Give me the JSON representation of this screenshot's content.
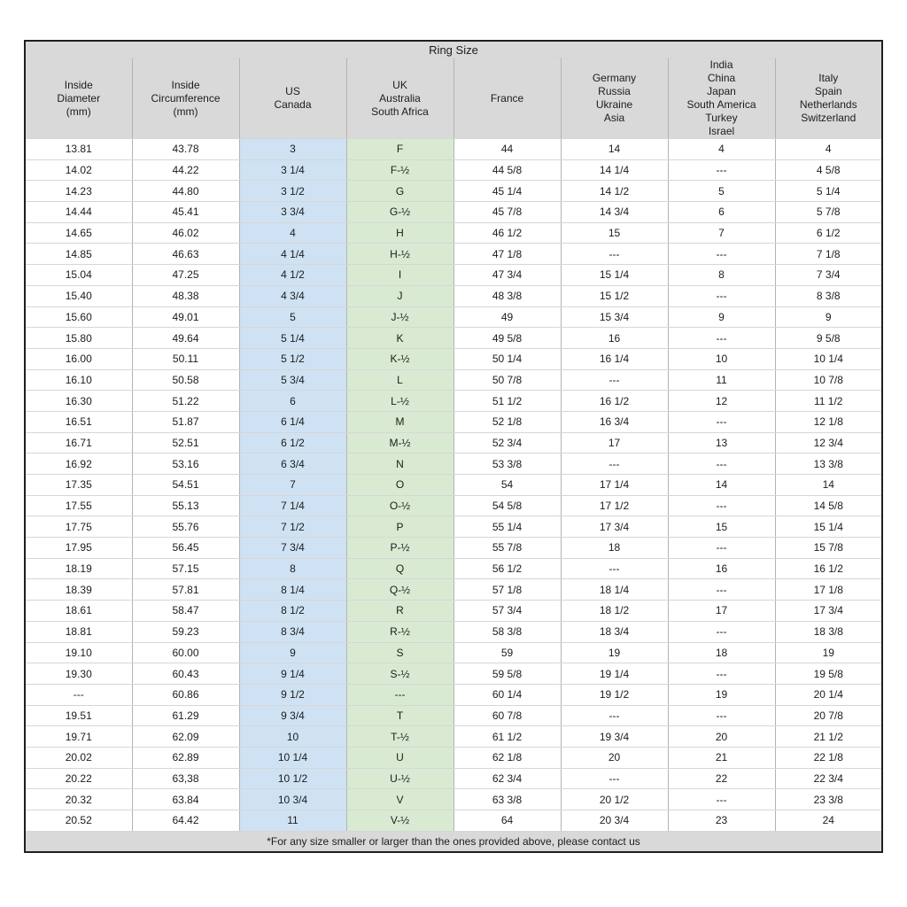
{
  "title": "Ring Size",
  "columns": [
    {
      "label": "Inside\nDiameter\n(mm)",
      "highlight": "none"
    },
    {
      "label": "Inside\nCircumference\n(mm)",
      "highlight": "none"
    },
    {
      "label": "US\nCanada",
      "highlight": "blue"
    },
    {
      "label": "UK\nAustralia\nSouth Africa",
      "highlight": "green"
    },
    {
      "label": "France",
      "highlight": "none"
    },
    {
      "label": "Germany\nRussia\nUkraine\nAsia",
      "highlight": "none"
    },
    {
      "label": "India\nChina\nJapan\nSouth America\nTurkey\nIsrael",
      "highlight": "none"
    },
    {
      "label": "Italy\nSpain\nNetherlands\nSwitzerland",
      "highlight": "none"
    }
  ],
  "rows": [
    [
      "13.81",
      "43.78",
      "3",
      "F",
      "44",
      "14",
      "4",
      "4"
    ],
    [
      "14.02",
      "44.22",
      "3 1/4",
      "F-½",
      "44 5/8",
      "14 1/4",
      "---",
      "4 5/8"
    ],
    [
      "14.23",
      "44.80",
      "3 1/2",
      "G",
      "45 1/4",
      "14 1/2",
      "5",
      "5 1/4"
    ],
    [
      "14.44",
      "45.41",
      "3 3/4",
      "G-½",
      "45 7/8",
      "14 3/4",
      "6",
      "5 7/8"
    ],
    [
      "14.65",
      "46.02",
      "4",
      "H",
      "46 1/2",
      "15",
      "7",
      "6 1/2"
    ],
    [
      "14.85",
      "46.63",
      "4 1/4",
      "H-½",
      "47 1/8",
      "---",
      "---",
      "7 1/8"
    ],
    [
      "15.04",
      "47.25",
      "4 1/2",
      "I",
      "47 3/4",
      "15 1/4",
      "8",
      "7 3/4"
    ],
    [
      "15.40",
      "48.38",
      "4 3/4",
      "J",
      "48 3/8",
      "15 1/2",
      "---",
      "8 3/8"
    ],
    [
      "15.60",
      "49.01",
      "5",
      "J-½",
      "49",
      "15 3/4",
      "9",
      "9"
    ],
    [
      "15.80",
      "49.64",
      "5 1/4",
      "K",
      "49 5/8",
      "16",
      "---",
      "9 5/8"
    ],
    [
      "16.00",
      "50.11",
      "5 1/2",
      "K-½",
      "50 1/4",
      "16 1/4",
      "10",
      "10 1/4"
    ],
    [
      "16.10",
      "50.58",
      "5 3/4",
      "L",
      "50 7/8",
      "---",
      "11",
      "10 7/8"
    ],
    [
      "16.30",
      "51.22",
      "6",
      "L-½",
      "51 1/2",
      "16 1/2",
      "12",
      "11 1/2"
    ],
    [
      "16.51",
      "51.87",
      "6 1/4",
      "M",
      "52 1/8",
      "16 3/4",
      "---",
      "12 1/8"
    ],
    [
      "16.71",
      "52.51",
      "6 1/2",
      "M-½",
      "52 3/4",
      "17",
      "13",
      "12 3/4"
    ],
    [
      "16.92",
      "53.16",
      "6 3/4",
      "N",
      "53 3/8",
      "---",
      "---",
      "13 3/8"
    ],
    [
      "17.35",
      "54.51",
      "7",
      "O",
      "54",
      "17 1/4",
      "14",
      "14"
    ],
    [
      "17.55",
      "55.13",
      "7 1/4",
      "O-½",
      "54 5/8",
      "17 1/2",
      "---",
      "14 5/8"
    ],
    [
      "17.75",
      "55.76",
      "7 1/2",
      "P",
      "55 1/4",
      "17 3/4",
      "15",
      "15 1/4"
    ],
    [
      "17.95",
      "56.45",
      "7 3/4",
      "P-½",
      "55 7/8",
      "18",
      "---",
      "15 7/8"
    ],
    [
      "18.19",
      "57.15",
      "8",
      "Q",
      "56 1/2",
      "---",
      "16",
      "16 1/2"
    ],
    [
      "18.39",
      "57.81",
      "8 1/4",
      "Q-½",
      "57 1/8",
      "18 1/4",
      "---",
      "17 1/8"
    ],
    [
      "18.61",
      "58.47",
      "8 1/2",
      "R",
      "57 3/4",
      "18 1/2",
      "17",
      "17 3/4"
    ],
    [
      "18.81",
      "59.23",
      "8 3/4",
      "R-½",
      "58 3/8",
      "18 3/4",
      "---",
      "18 3/8"
    ],
    [
      "19.10",
      "60.00",
      "9",
      "S",
      "59",
      "19",
      "18",
      "19"
    ],
    [
      "19.30",
      "60.43",
      "9 1/4",
      "S-½",
      "59 5/8",
      "19 1/4",
      "---",
      "19 5/8"
    ],
    [
      "---",
      "60.86",
      "9 1/2",
      "---",
      "60 1/4",
      "19 1/2",
      "19",
      "20 1/4"
    ],
    [
      "19.51",
      "61.29",
      "9 3/4",
      "T",
      "60 7/8",
      "---",
      "---",
      "20 7/8"
    ],
    [
      "19.71",
      "62.09",
      "10",
      "T-½",
      "61 1/2",
      "19 3/4",
      "20",
      "21 1/2"
    ],
    [
      "20.02",
      "62.89",
      "10 1/4",
      "U",
      "62 1/8",
      "20",
      "21",
      "22 1/8"
    ],
    [
      "20.22",
      "63,38",
      "10 1/2",
      "U-½",
      "62 3/4",
      "---",
      "22",
      "22 3/4"
    ],
    [
      "20.32",
      "63.84",
      "10 3/4",
      "V",
      "63 3/8",
      "20 1/2",
      "---",
      "23 3/8"
    ],
    [
      "20.52",
      "64.42",
      "11",
      "V-½",
      "64",
      "20 3/4",
      "23",
      "24"
    ]
  ],
  "footer_note": "*For any size smaller or larger than the ones provided above, please contact us",
  "colors": {
    "header_bg": "#d9d9d9",
    "us_canada_bg": "#cfe2f3",
    "uk_bg": "#d9ead3",
    "border_dark": "#1f1f1f",
    "border_mid": "#b3b3b3",
    "border_light": "#d6d6d6",
    "text": "#1c1c1c"
  }
}
